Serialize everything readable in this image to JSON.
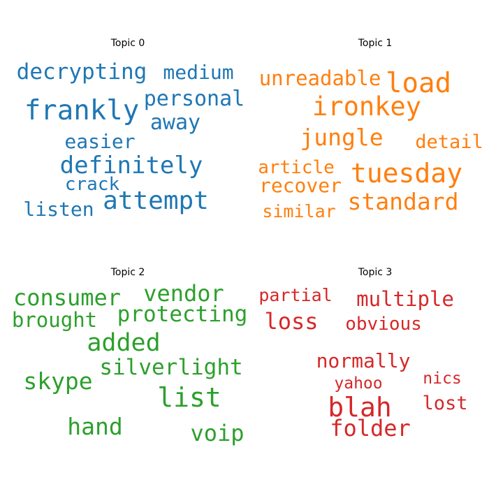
{
  "chart_data": [
    {
      "type": "wordcloud",
      "title": "Topic 0",
      "color": "#1f77b4",
      "words": [
        {
          "text": "frankly",
          "weight": 1.0
        },
        {
          "text": "attempt",
          "weight": 0.93
        },
        {
          "text": "definitely",
          "weight": 0.88
        },
        {
          "text": "decrypting",
          "weight": 0.78
        },
        {
          "text": "personal",
          "weight": 0.77
        },
        {
          "text": "away",
          "weight": 0.77
        },
        {
          "text": "medium",
          "weight": 0.73
        },
        {
          "text": "easier",
          "weight": 0.72
        },
        {
          "text": "listen",
          "weight": 0.72
        },
        {
          "text": "crack",
          "weight": 0.68
        }
      ]
    },
    {
      "type": "wordcloud",
      "title": "Topic 1",
      "color": "#ff7f0e",
      "words": [
        {
          "text": "load",
          "weight": 1.0
        },
        {
          "text": "tuesday",
          "weight": 0.97
        },
        {
          "text": "ironkey",
          "weight": 0.94
        },
        {
          "text": "standard",
          "weight": 0.84
        },
        {
          "text": "jungle",
          "weight": 0.84
        },
        {
          "text": "unreadable",
          "weight": 0.74
        },
        {
          "text": "recover",
          "weight": 0.72
        },
        {
          "text": "detail",
          "weight": 0.7
        },
        {
          "text": "article",
          "weight": 0.67
        },
        {
          "text": "similar",
          "weight": 0.66
        }
      ]
    },
    {
      "type": "wordcloud",
      "title": "Topic 2",
      "color": "#2ca02c",
      "words": [
        {
          "text": "list",
          "weight": 1.0
        },
        {
          "text": "added",
          "weight": 0.93
        },
        {
          "text": "skype",
          "weight": 0.87
        },
        {
          "text": "hand",
          "weight": 0.87
        },
        {
          "text": "voip",
          "weight": 0.85
        },
        {
          "text": "vendor",
          "weight": 0.84
        },
        {
          "text": "consumer",
          "weight": 0.83
        },
        {
          "text": "silverlight",
          "weight": 0.8
        },
        {
          "text": "protecting",
          "weight": 0.8
        },
        {
          "text": "brought",
          "weight": 0.75
        }
      ]
    },
    {
      "type": "wordcloud",
      "title": "Topic 3",
      "color": "#d62728",
      "words": [
        {
          "text": "blah",
          "weight": 1.0
        },
        {
          "text": "folder",
          "weight": 0.85
        },
        {
          "text": "loss",
          "weight": 0.85
        },
        {
          "text": "multiple",
          "weight": 0.77
        },
        {
          "text": "normally",
          "weight": 0.75
        },
        {
          "text": "lost",
          "weight": 0.72
        },
        {
          "text": "obvious",
          "weight": 0.68
        },
        {
          "text": "partial",
          "weight": 0.66
        },
        {
          "text": "nics",
          "weight": 0.6
        },
        {
          "text": "yahoo",
          "weight": 0.6
        }
      ]
    }
  ]
}
